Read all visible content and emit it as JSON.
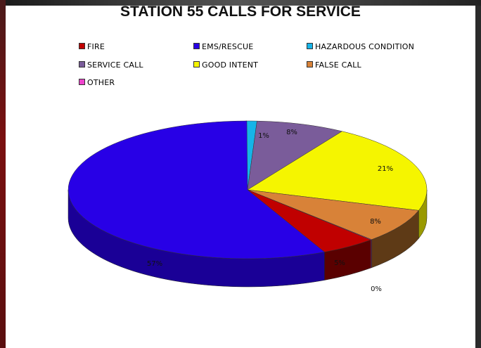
{
  "chart_data": {
    "type": "pie",
    "title": "STATION 55 CALLS FOR SERVICE",
    "slices": [
      {
        "label": "FIRE",
        "value": 5,
        "display": "5%",
        "color": "#c00000",
        "side_color": "#5a0000"
      },
      {
        "label": "EMS/RESCUE",
        "value": 57,
        "display": "57%",
        "color": "#2800e6",
        "side_color": "#1a0096"
      },
      {
        "label": "HAZARDOUS CONDITION",
        "value": 1,
        "display": "1%",
        "color": "#16b4e8",
        "side_color": "#0c6f91"
      },
      {
        "label": "SERVICE CALL",
        "value": 8,
        "display": "8%",
        "color": "#7a5c9a",
        "side_color": "#4b3762"
      },
      {
        "label": "GOOD INTENT",
        "value": 21,
        "display": "21%",
        "color": "#f5f500",
        "side_color": "#9a9a00"
      },
      {
        "label": "FALSE CALL",
        "value": 8,
        "display": "8%",
        "color": "#d88238",
        "side_color": "#5e3a16"
      },
      {
        "label": "OTHER",
        "value": 0,
        "display": "0%",
        "color": "#ee44cc",
        "side_color": "#9a2a85"
      }
    ],
    "legend_position": "top",
    "three_d": true
  }
}
